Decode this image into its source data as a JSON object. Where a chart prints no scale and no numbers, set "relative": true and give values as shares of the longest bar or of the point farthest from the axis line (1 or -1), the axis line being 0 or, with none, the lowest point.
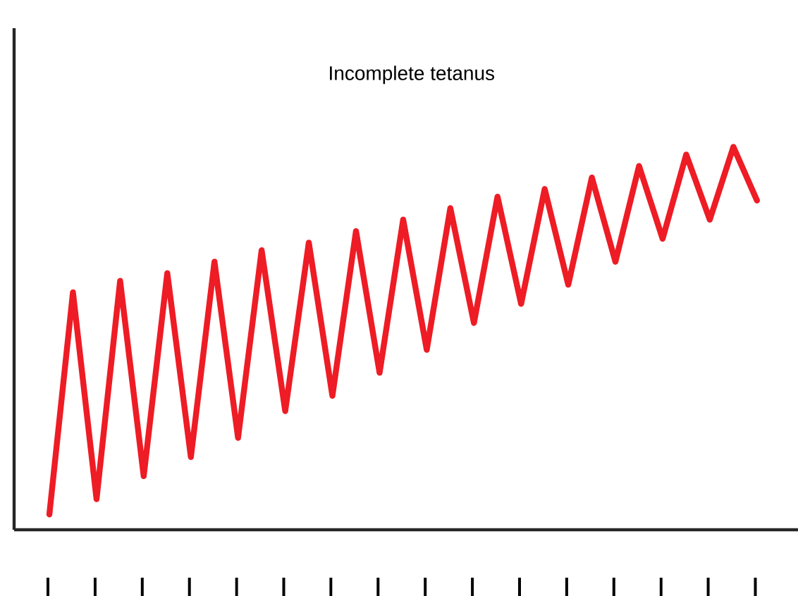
{
  "chart_data": {
    "type": "line",
    "title": "Incomplete tetanus",
    "relative": true,
    "categories": [
      null,
      null,
      null,
      null,
      null,
      null,
      null,
      null,
      null,
      null,
      null,
      null,
      null,
      null,
      null,
      null,
      null,
      null,
      null,
      null,
      null,
      null,
      null,
      null,
      null,
      null,
      null,
      null,
      null,
      null,
      null
    ],
    "series": [
      {
        "color": "#ee1c25",
        "values": [
          0.04,
          0.62,
          0.08,
          0.65,
          0.14,
          0.67,
          0.19,
          0.7,
          0.24,
          0.73,
          0.31,
          0.75,
          0.35,
          0.78,
          0.41,
          0.81,
          0.47,
          0.84,
          0.54,
          0.87,
          0.59,
          0.89,
          0.64,
          0.92,
          0.7,
          0.95,
          0.76,
          0.98,
          0.81,
          1.0,
          0.86
        ]
      }
    ]
  }
}
